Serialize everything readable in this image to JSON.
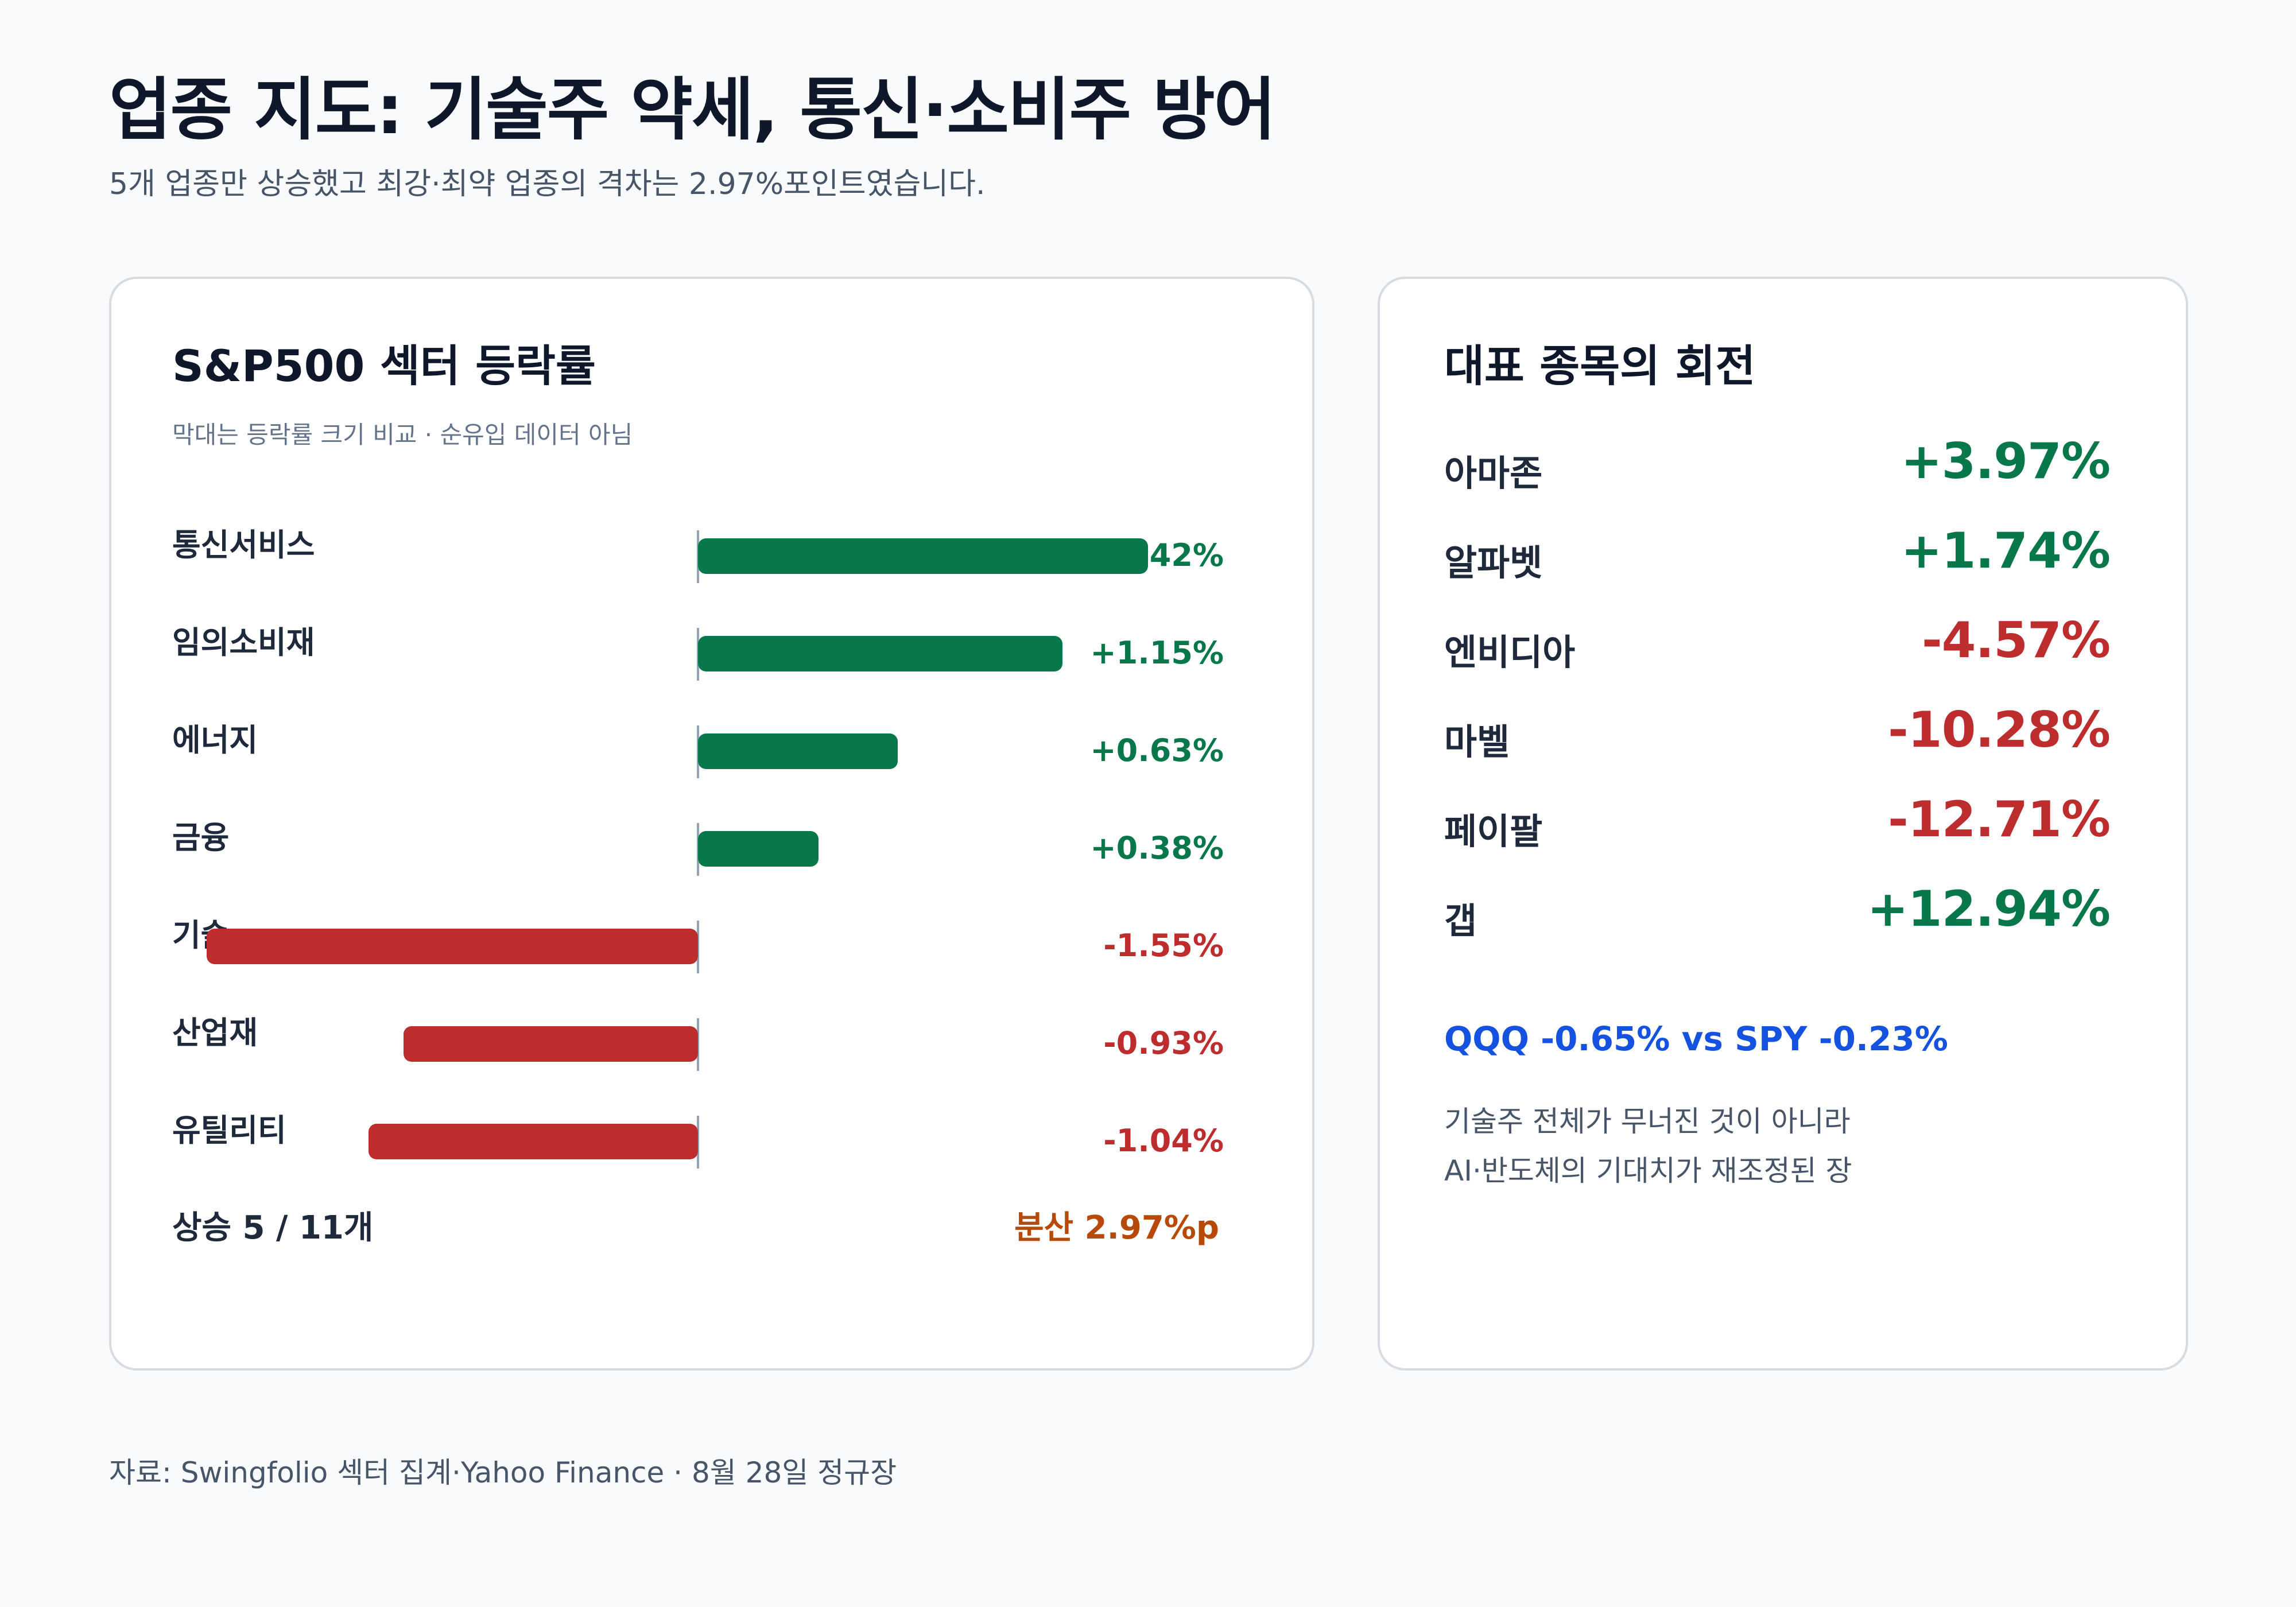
{
  "header": {
    "title": "업종 지도: 기술주 약세, 통신·소비주 방어",
    "subtitle": "5개 업종만 상승했고 최강·최약 업종의 격차는 2.97%포인트였습니다."
  },
  "chart_data": {
    "type": "bar",
    "orientation": "horizontal",
    "title": "S&P500 섹터 등락률",
    "note": "막대는 등락률 크기 비교 · 순유입 데이터 아님",
    "categories": [
      "통신서비스",
      "임의소비재",
      "에너지",
      "금융",
      "기술",
      "산업재",
      "유틸리티"
    ],
    "values": [
      1.42,
      1.15,
      0.63,
      0.38,
      -1.55,
      -0.93,
      -1.04
    ],
    "value_labels": [
      "+1.42%",
      "+1.15%",
      "+0.63%",
      "+0.38%",
      "-1.55%",
      "-0.93%",
      "-1.04%"
    ],
    "unit": "%",
    "xlim": [
      -1.65,
      1.65
    ],
    "colors": {
      "positive": "#08784a",
      "negative": "#bd2d2d"
    }
  },
  "summary": {
    "advancers": "상승 5 / 11개",
    "spread": "분산 2.97%p"
  },
  "stocks": {
    "title": "대표 종목의 회전",
    "items": [
      {
        "name": "아마존",
        "change": "+3.97%",
        "direction": "up"
      },
      {
        "name": "알파벳",
        "change": "+1.74%",
        "direction": "up"
      },
      {
        "name": "엔비디아",
        "change": "-4.57%",
        "direction": "down"
      },
      {
        "name": "마벨",
        "change": "-10.28%",
        "direction": "down"
      },
      {
        "name": "페이팔",
        "change": "-12.71%",
        "direction": "down"
      },
      {
        "name": "갭",
        "change": "+12.94%",
        "direction": "up"
      }
    ],
    "comparison": "QQQ -0.65% vs SPY -0.23%",
    "note_lines": [
      "기술주 전체가 무너진 것이 아니라",
      "AI·반도체의 기대치가 재조정된 장"
    ]
  },
  "footer": {
    "source": "자료: Swingfolio 섹터 집계·Yahoo Finance · 8월 28일 정규장"
  }
}
